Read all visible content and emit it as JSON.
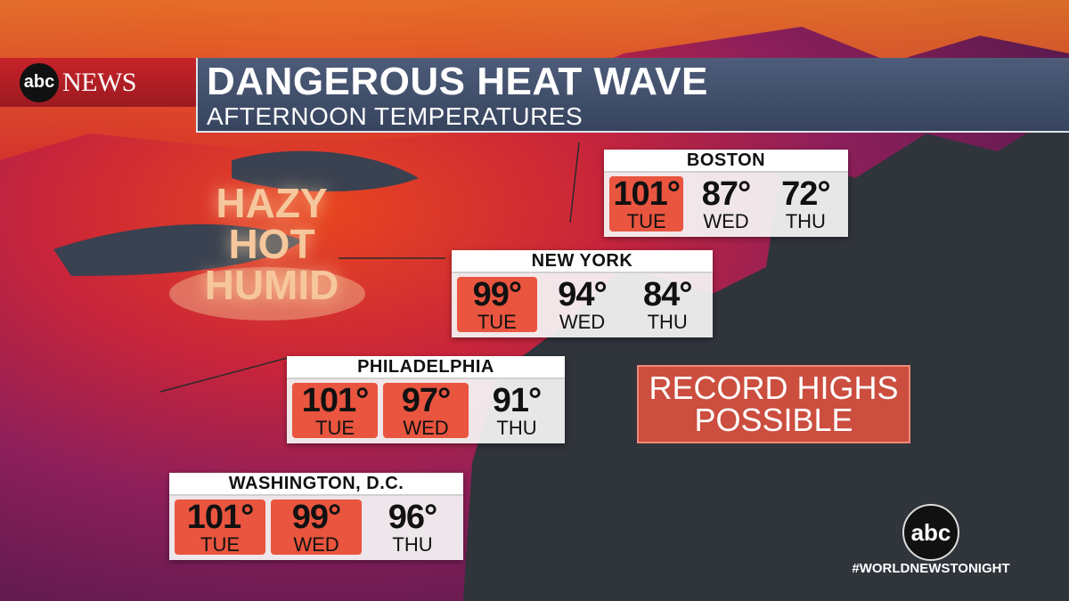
{
  "header": {
    "logo": "abc",
    "network": "NEWS",
    "title": "DANGEROUS HEAT WAVE",
    "subtitle": "AFTERNOON TEMPERATURES"
  },
  "map_label": {
    "lines": [
      "HAZY",
      "HOT",
      "HUMID"
    ]
  },
  "cities": [
    {
      "name": "BOSTON",
      "days": [
        {
          "temp": "101°",
          "day": "TUE",
          "highlight": true
        },
        {
          "temp": "87°",
          "day": "WED",
          "highlight": false
        },
        {
          "temp": "72°",
          "day": "THU",
          "highlight": false
        }
      ]
    },
    {
      "name": "NEW YORK",
      "days": [
        {
          "temp": "99°",
          "day": "TUE",
          "highlight": true
        },
        {
          "temp": "94°",
          "day": "WED",
          "highlight": false
        },
        {
          "temp": "84°",
          "day": "THU",
          "highlight": false
        }
      ]
    },
    {
      "name": "PHILADELPHIA",
      "days": [
        {
          "temp": "101°",
          "day": "TUE",
          "highlight": true
        },
        {
          "temp": "97°",
          "day": "WED",
          "highlight": true
        },
        {
          "temp": "91°",
          "day": "THU",
          "highlight": false
        }
      ]
    },
    {
      "name": "WASHINGTON, D.C.",
      "days": [
        {
          "temp": "101°",
          "day": "TUE",
          "highlight": true
        },
        {
          "temp": "99°",
          "day": "WED",
          "highlight": true
        },
        {
          "temp": "96°",
          "day": "THU",
          "highlight": false
        }
      ]
    }
  ],
  "callout": {
    "lines": [
      "RECORD HIGHS",
      "POSSIBLE"
    ]
  },
  "bug": {
    "logo": "abc",
    "hashtag": "#WORLDNEWSTONIGHT"
  }
}
